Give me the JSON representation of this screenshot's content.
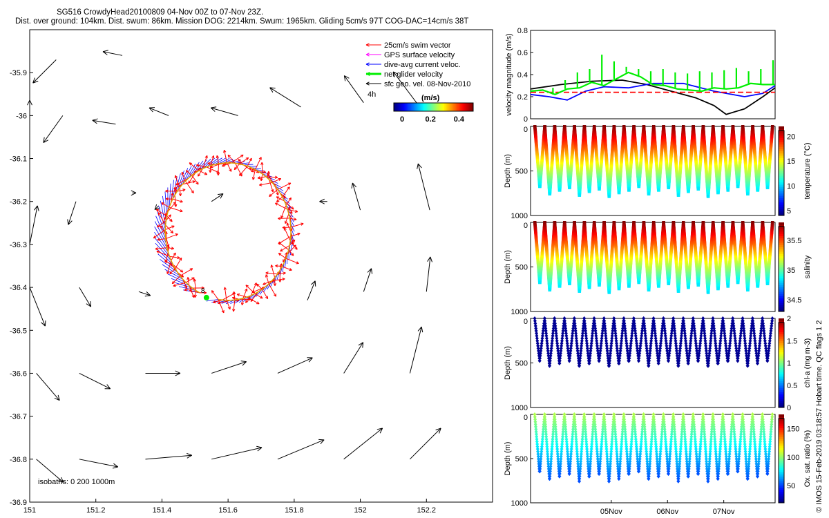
{
  "header": {
    "line1": "SG516 CrowdyHead20100809 04-Nov 00Z to 07-Nov 23Z.",
    "line2": "Dist. over ground: 104km. Dist. swum: 86km. Mission DOG: 2214km. Swum: 1965km. Gliding 5cm/s 97T COG-DAC=14cm/s 38T"
  },
  "footer_credit": "© IMOS 15-Feb-2019 03:18:57 Hobart time. QC flags 1  2",
  "colors": {
    "swim": "#ff0000",
    "gps": "#ff00ff",
    "dac": "#0000ff",
    "net": "#00ee00",
    "geo": "#000000",
    "track": "#ffaa00",
    "vel_red": "#ff0000"
  },
  "chart_data": [
    {
      "type": "scatter",
      "name": "map",
      "xlim": [
        151,
        152.4
      ],
      "ylim": [
        -36.9,
        -35.8
      ],
      "xticks": [
        151,
        151.2,
        151.4,
        151.6,
        151.8,
        152,
        152.2
      ],
      "yticks": [
        -35.9,
        -36,
        -36.1,
        -36.2,
        -36.3,
        -36.4,
        -36.5,
        -36.6,
        -36.7,
        -36.8,
        -36.9
      ],
      "xtick_labels": [
        "151",
        "151.2",
        "151.4",
        "151.6",
        "151.8",
        "152",
        "152.2"
      ],
      "ytick_labels": [
        "-35.9",
        "-36",
        "-36.1",
        "-36.2",
        "-36.3",
        "-36.4",
        "-36.5",
        "-36.6",
        "-36.7",
        "-36.8",
        "-36.9"
      ],
      "legend": [
        {
          "label": "25cm/s swim vector",
          "color": "#ff0000"
        },
        {
          "label": "GPS surface velocity",
          "color": "#ff00ff"
        },
        {
          "label": "dive-avg current veloc.",
          "color": "#0000ff"
        },
        {
          "label": "net glider velocity",
          "color": "#00ee00"
        },
        {
          "label": "sfc geo. vel. 08-Nov-2010",
          "color": "#000000"
        }
      ],
      "legend_placement": "top-right",
      "colorbar": {
        "title": "(m/s)",
        "ticks": [
          "0",
          "0.2",
          "0.4"
        ],
        "range": [
          0,
          0.5
        ]
      },
      "isobaths_label": "isobaths: 0   200  1000m",
      "track_center": {
        "lon": 151.6,
        "lat": -36.27
      },
      "track_radius_deg": {
        "lon": 0.19,
        "lat": 0.16
      },
      "start_label": "8",
      "end_label": "4h",
      "geo_vectors": [
        {
          "lon": 151.08,
          "lat": -35.87,
          "u": -0.12,
          "v": -0.12
        },
        {
          "lon": 151.28,
          "lat": -35.86,
          "u": -0.1,
          "v": 0.02
        },
        {
          "lon": 151.0,
          "lat": -36.0,
          "u": 0.0,
          "v": 0.08
        },
        {
          "lon": 151.1,
          "lat": -36.0,
          "u": -0.1,
          "v": -0.14
        },
        {
          "lon": 151.26,
          "lat": -36.02,
          "u": -0.12,
          "v": 0.02
        },
        {
          "lon": 151.42,
          "lat": -36.0,
          "u": -0.1,
          "v": 0.04
        },
        {
          "lon": 151.63,
          "lat": -36.0,
          "u": -0.14,
          "v": 0.04
        },
        {
          "lon": 151.82,
          "lat": -35.98,
          "u": -0.16,
          "v": 0.1
        },
        {
          "lon": 152.01,
          "lat": -35.97,
          "u": -0.1,
          "v": 0.14
        },
        {
          "lon": 152.17,
          "lat": -35.97,
          "u": -0.12,
          "v": 0.16
        },
        {
          "lon": 151.0,
          "lat": -36.3,
          "u": 0.04,
          "v": 0.2
        },
        {
          "lon": 151.14,
          "lat": -36.2,
          "u": -0.04,
          "v": -0.12
        },
        {
          "lon": 151.31,
          "lat": -36.18,
          "u": 0.02,
          "v": 0.0
        },
        {
          "lon": 151.55,
          "lat": -36.2,
          "u": 0.06,
          "v": 0.04
        },
        {
          "lon": 151.9,
          "lat": -36.2,
          "u": -0.04,
          "v": 0.0
        },
        {
          "lon": 152.0,
          "lat": -36.22,
          "u": -0.04,
          "v": 0.14
        },
        {
          "lon": 152.21,
          "lat": -36.22,
          "u": -0.06,
          "v": 0.24
        },
        {
          "lon": 151.39,
          "lat": -36.21,
          "u": -0.02,
          "v": -0.02
        },
        {
          "lon": 151.0,
          "lat": -36.4,
          "u": 0.08,
          "v": -0.2
        },
        {
          "lon": 151.15,
          "lat": -36.4,
          "u": 0.06,
          "v": -0.1
        },
        {
          "lon": 151.33,
          "lat": -36.41,
          "u": 0.06,
          "v": -0.02
        },
        {
          "lon": 152.01,
          "lat": -36.41,
          "u": 0.04,
          "v": 0.12
        },
        {
          "lon": 152.2,
          "lat": -36.41,
          "u": 0.02,
          "v": 0.18
        },
        {
          "lon": 151.84,
          "lat": -36.43,
          "u": 0.04,
          "v": 0.1
        },
        {
          "lon": 151.02,
          "lat": -36.6,
          "u": 0.12,
          "v": -0.14
        },
        {
          "lon": 151.15,
          "lat": -36.6,
          "u": 0.16,
          "v": -0.08
        },
        {
          "lon": 151.35,
          "lat": -36.6,
          "u": 0.18,
          "v": 0.0
        },
        {
          "lon": 151.55,
          "lat": -36.6,
          "u": 0.18,
          "v": 0.06
        },
        {
          "lon": 151.75,
          "lat": -36.6,
          "u": 0.18,
          "v": 0.08
        },
        {
          "lon": 151.95,
          "lat": -36.6,
          "u": 0.1,
          "v": 0.16
        },
        {
          "lon": 152.15,
          "lat": -36.6,
          "u": 0.06,
          "v": 0.24
        },
        {
          "lon": 151.02,
          "lat": -36.8,
          "u": 0.14,
          "v": -0.12
        },
        {
          "lon": 151.15,
          "lat": -36.8,
          "u": 0.2,
          "v": -0.04
        },
        {
          "lon": 151.35,
          "lat": -36.8,
          "u": 0.24,
          "v": 0.02
        },
        {
          "lon": 151.55,
          "lat": -36.8,
          "u": 0.26,
          "v": 0.06
        },
        {
          "lon": 151.75,
          "lat": -36.8,
          "u": 0.24,
          "v": 0.1
        },
        {
          "lon": 151.95,
          "lat": -36.8,
          "u": 0.2,
          "v": 0.16
        },
        {
          "lon": 152.15,
          "lat": -36.8,
          "u": 0.16,
          "v": 0.16
        }
      ]
    },
    {
      "type": "line",
      "name": "velocity",
      "ylabel": "velocity magnitude (m/s)",
      "ylim": [
        0,
        0.8
      ],
      "yticks": [
        "0",
        "0.2",
        "0.4",
        "0.6",
        "0.8"
      ],
      "xlim": [
        0,
        4
      ],
      "series": [
        {
          "color": "#000000",
          "x": [
            0,
            0.5,
            1,
            1.5,
            1.9,
            2.3,
            2.7,
            3.0,
            3.2,
            3.5,
            3.8,
            4.0
          ],
          "y": [
            0.27,
            0.31,
            0.34,
            0.35,
            0.31,
            0.25,
            0.19,
            0.12,
            0.04,
            0.09,
            0.2,
            0.28
          ]
        },
        {
          "color": "#0000ff",
          "x": [
            0,
            0.3,
            0.6,
            0.9,
            1.2,
            1.6,
            2.0,
            2.5,
            3.0,
            3.5,
            3.8,
            4.0
          ],
          "y": [
            0.22,
            0.2,
            0.17,
            0.25,
            0.29,
            0.28,
            0.32,
            0.32,
            0.25,
            0.2,
            0.23,
            0.3
          ]
        },
        {
          "color": "#ff0000",
          "dashed": true,
          "x": [
            0,
            4
          ],
          "y": [
            0.24,
            0.24
          ]
        },
        {
          "color": "#00ee00",
          "x": [
            0,
            0.2,
            0.4,
            0.6,
            0.8,
            1.0,
            1.2,
            1.4,
            1.6,
            1.8,
            2.0,
            2.2,
            2.4,
            2.6,
            2.8,
            3.0,
            3.2,
            3.4,
            3.6,
            3.8,
            4.0
          ],
          "y": [
            0.25,
            0.26,
            0.22,
            0.27,
            0.28,
            0.33,
            0.3,
            0.36,
            0.42,
            0.38,
            0.31,
            0.3,
            0.27,
            0.26,
            0.25,
            0.28,
            0.27,
            0.28,
            0.32,
            0.31,
            0.31
          ],
          "spikes": [
            0.25,
            0.28,
            0.35,
            0.42,
            0.45,
            0.58,
            0.52,
            0.47,
            0.45,
            0.43,
            0.45,
            0.42,
            0.41,
            0.43,
            0.42,
            0.44,
            0.46,
            0.43,
            0.45,
            0.53
          ]
        }
      ]
    },
    {
      "type": "scatter",
      "name": "temperature",
      "ylabel": "Depth (m)",
      "ylim": [
        0,
        1000
      ],
      "yticks": [
        "0",
        "500",
        "1000"
      ],
      "colorbar_label": "temperature (°C)",
      "colorbar_ticks": [
        "5",
        "10",
        "15",
        "20"
      ],
      "crange": [
        4,
        22
      ],
      "dives": 24,
      "max_depth": 800
    },
    {
      "type": "scatter",
      "name": "salinity",
      "ylabel": "Depth (m)",
      "ylim": [
        0,
        1000
      ],
      "yticks": [
        "0",
        "500",
        "1000"
      ],
      "colorbar_label": "salinity",
      "colorbar_ticks": [
        "34.5",
        "35",
        "35.5"
      ],
      "crange": [
        34.3,
        35.8
      ],
      "dives": 24,
      "max_depth": 800
    },
    {
      "type": "scatter",
      "name": "chla",
      "ylabel": "Depth (m)",
      "ylim": [
        0,
        1000
      ],
      "yticks": [
        "0",
        "500",
        "1000"
      ],
      "colorbar_label": "chl-a (mg m-3)",
      "colorbar_ticks": [
        "0",
        "0.5",
        "1",
        "1.5",
        "2"
      ],
      "crange": [
        0,
        2
      ],
      "dives": 24,
      "max_depth": 560
    },
    {
      "type": "scatter",
      "name": "oxygen",
      "ylabel": "Depth (m)",
      "ylim": [
        0,
        1000
      ],
      "yticks": [
        "0",
        "500",
        "1000"
      ],
      "colorbar_label": "Ox. sat. ratio (%)",
      "colorbar_ticks": [
        "50",
        "100",
        "150"
      ],
      "crange": [
        20,
        175
      ],
      "xticks": [
        "05Nov",
        "06Nov",
        "07Nov"
      ],
      "dives": 24,
      "max_depth": 780
    }
  ]
}
